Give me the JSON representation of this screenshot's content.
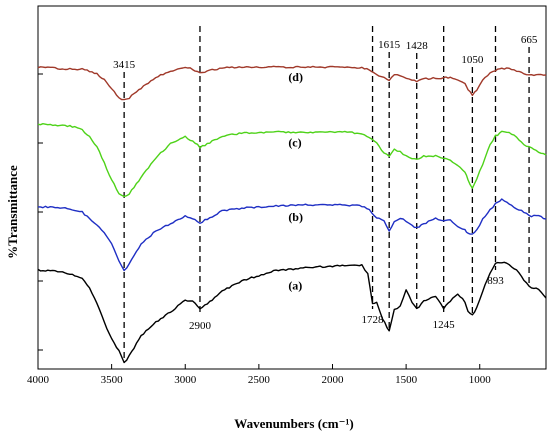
{
  "chart_data": {
    "type": "line",
    "title": "",
    "xlabel": "Wavenumbers (cm⁻¹)",
    "ylabel": "%Transmittance",
    "xlim": [
      4000,
      550
    ],
    "x_reversed": true,
    "x_ticks": [
      4000,
      3500,
      3000,
      2500,
      2000,
      1500,
      1000
    ],
    "y_ticks_shown": true,
    "y_values_shown": false,
    "grid": false,
    "legend": "none",
    "series": [
      {
        "label": "(d)",
        "color": "#a0392a",
        "points": [
          [
            4000,
            61
          ],
          [
            3900,
            62
          ],
          [
            3800,
            63
          ],
          [
            3700,
            63
          ],
          [
            3650,
            65
          ],
          [
            3600,
            68
          ],
          [
            3550,
            74
          ],
          [
            3500,
            83
          ],
          [
            3450,
            92
          ],
          [
            3415,
            94
          ],
          [
            3380,
            92
          ],
          [
            3300,
            82
          ],
          [
            3200,
            71
          ],
          [
            3100,
            65
          ],
          [
            3000,
            61
          ],
          [
            2950,
            63
          ],
          [
            2900,
            67
          ],
          [
            2850,
            65
          ],
          [
            2750,
            62
          ],
          [
            2600,
            61
          ],
          [
            2400,
            61
          ],
          [
            2200,
            61
          ],
          [
            2000,
            61
          ],
          [
            1900,
            61
          ],
          [
            1800,
            62
          ],
          [
            1750,
            64
          ],
          [
            1700,
            69
          ],
          [
            1650,
            71
          ],
          [
            1615,
            74
          ],
          [
            1580,
            69
          ],
          [
            1540,
            70
          ],
          [
            1500,
            72
          ],
          [
            1460,
            74
          ],
          [
            1428,
            75
          ],
          [
            1380,
            73
          ],
          [
            1300,
            72
          ],
          [
            1245,
            72
          ],
          [
            1200,
            71
          ],
          [
            1150,
            74
          ],
          [
            1100,
            78
          ],
          [
            1080,
            84
          ],
          [
            1050,
            89
          ],
          [
            1020,
            84
          ],
          [
            980,
            74
          ],
          [
            930,
            67
          ],
          [
            893,
            64
          ],
          [
            850,
            62
          ],
          [
            800,
            63
          ],
          [
            750,
            65
          ],
          [
            700,
            67
          ],
          [
            665,
            69
          ],
          [
            600,
            69
          ],
          [
            550,
            69
          ]
        ]
      },
      {
        "label": "(c)",
        "color": "#4ed219",
        "points": [
          [
            4000,
            118
          ],
          [
            3900,
            119
          ],
          [
            3800,
            120
          ],
          [
            3750,
            121
          ],
          [
            3700,
            124
          ],
          [
            3650,
            131
          ],
          [
            3600,
            141
          ],
          [
            3550,
            157
          ],
          [
            3500,
            174
          ],
          [
            3450,
            187
          ],
          [
            3415,
            191
          ],
          [
            3380,
            188
          ],
          [
            3300,
            171
          ],
          [
            3200,
            152
          ],
          [
            3100,
            138
          ],
          [
            3000,
            131
          ],
          [
            2950,
            135
          ],
          [
            2900,
            141
          ],
          [
            2850,
            138
          ],
          [
            2750,
            130
          ],
          [
            2600,
            127
          ],
          [
            2400,
            126
          ],
          [
            2200,
            126
          ],
          [
            2000,
            126
          ],
          [
            1900,
            126
          ],
          [
            1800,
            128
          ],
          [
            1750,
            131
          ],
          [
            1700,
            137
          ],
          [
            1650,
            147
          ],
          [
            1615,
            150
          ],
          [
            1580,
            143
          ],
          [
            1540,
            146
          ],
          [
            1500,
            150
          ],
          [
            1460,
            153
          ],
          [
            1428,
            154
          ],
          [
            1380,
            150
          ],
          [
            1300,
            150
          ],
          [
            1245,
            152
          ],
          [
            1200,
            155
          ],
          [
            1150,
            160
          ],
          [
            1100,
            166
          ],
          [
            1080,
            174
          ],
          [
            1050,
            182
          ],
          [
            1020,
            173
          ],
          [
            980,
            158
          ],
          [
            930,
            139
          ],
          [
            893,
            130
          ],
          [
            850,
            126
          ],
          [
            800,
            126
          ],
          [
            750,
            131
          ],
          [
            700,
            138
          ],
          [
            665,
            141
          ],
          [
            600,
            146
          ],
          [
            550,
            149
          ]
        ]
      },
      {
        "label": "(b)",
        "color": "#1f2fc4",
        "points": [
          [
            4000,
            201
          ],
          [
            3900,
            201
          ],
          [
            3800,
            202
          ],
          [
            3700,
            206
          ],
          [
            3650,
            213
          ],
          [
            3600,
            219
          ],
          [
            3550,
            227
          ],
          [
            3500,
            238
          ],
          [
            3450,
            255
          ],
          [
            3415,
            265
          ],
          [
            3380,
            258
          ],
          [
            3300,
            238
          ],
          [
            3200,
            225
          ],
          [
            3100,
            218
          ],
          [
            3000,
            210
          ],
          [
            2950,
            212
          ],
          [
            2900,
            217
          ],
          [
            2850,
            213
          ],
          [
            2750,
            205
          ],
          [
            2600,
            202
          ],
          [
            2400,
            200
          ],
          [
            2200,
            199
          ],
          [
            2000,
            199
          ],
          [
            1900,
            199
          ],
          [
            1800,
            200
          ],
          [
            1750,
            204
          ],
          [
            1700,
            212
          ],
          [
            1650,
            215
          ],
          [
            1615,
            225
          ],
          [
            1580,
            215
          ],
          [
            1540,
            212
          ],
          [
            1500,
            215
          ],
          [
            1460,
            220
          ],
          [
            1428,
            222
          ],
          [
            1380,
            218
          ],
          [
            1300,
            212
          ],
          [
            1245,
            215
          ],
          [
            1200,
            214
          ],
          [
            1150,
            220
          ],
          [
            1100,
            224
          ],
          [
            1080,
            227
          ],
          [
            1050,
            228
          ],
          [
            1020,
            224
          ],
          [
            980,
            213
          ],
          [
            930,
            204
          ],
          [
            893,
            198
          ],
          [
            850,
            193
          ],
          [
            800,
            198
          ],
          [
            750,
            203
          ],
          [
            700,
            206
          ],
          [
            665,
            210
          ],
          [
            600,
            210
          ],
          [
            550,
            213
          ]
        ]
      },
      {
        "label": "(a)",
        "color": "#000000",
        "points": [
          [
            4000,
            264
          ],
          [
            3900,
            265
          ],
          [
            3800,
            267
          ],
          [
            3700,
            273
          ],
          [
            3650,
            282
          ],
          [
            3600,
            297
          ],
          [
            3550,
            316
          ],
          [
            3500,
            333
          ],
          [
            3450,
            345
          ],
          [
            3415,
            357
          ],
          [
            3380,
            350
          ],
          [
            3300,
            330
          ],
          [
            3200,
            316
          ],
          [
            3100,
            306
          ],
          [
            3000,
            294
          ],
          [
            2950,
            295
          ],
          [
            2900,
            303
          ],
          [
            2850,
            298
          ],
          [
            2750,
            285
          ],
          [
            2600,
            274
          ],
          [
            2400,
            265
          ],
          [
            2200,
            262
          ],
          [
            2000,
            260
          ],
          [
            1900,
            259
          ],
          [
            1800,
            259
          ],
          [
            1760,
            268
          ],
          [
            1728,
            297
          ],
          [
            1700,
            296
          ],
          [
            1660,
            313
          ],
          [
            1615,
            325
          ],
          [
            1580,
            304
          ],
          [
            1540,
            300
          ],
          [
            1500,
            284
          ],
          [
            1460,
            296
          ],
          [
            1428,
            303
          ],
          [
            1380,
            295
          ],
          [
            1300,
            290
          ],
          [
            1245,
            302
          ],
          [
            1200,
            295
          ],
          [
            1150,
            288
          ],
          [
            1100,
            296
          ],
          [
            1080,
            305
          ],
          [
            1050,
            309
          ],
          [
            1020,
            302
          ],
          [
            980,
            285
          ],
          [
            930,
            268
          ],
          [
            893,
            258
          ],
          [
            850,
            256
          ],
          [
            800,
            259
          ],
          [
            750,
            264
          ],
          [
            700,
            274
          ],
          [
            665,
            281
          ],
          [
            600,
            283
          ],
          [
            550,
            292
          ]
        ]
      }
    ],
    "reference_lines": [
      {
        "x": 3415,
        "label": "3415",
        "label_side": "top"
      },
      {
        "x": 2900,
        "label": "2900",
        "label_side": "bottom"
      },
      {
        "x": 1728,
        "label": "1728",
        "label_side": "bottom"
      },
      {
        "x": 1615,
        "label": "1615",
        "label_side": "top"
      },
      {
        "x": 1428,
        "label": "1428",
        "label_side": "top"
      },
      {
        "x": 1245,
        "label": "1245",
        "label_side": "bottom"
      },
      {
        "x": 1050,
        "label": "1050",
        "label_side": "top"
      },
      {
        "x": 893,
        "label": "893",
        "label_side": "bottom"
      },
      {
        "x": 665,
        "label": "665",
        "label_side": "top"
      }
    ]
  }
}
